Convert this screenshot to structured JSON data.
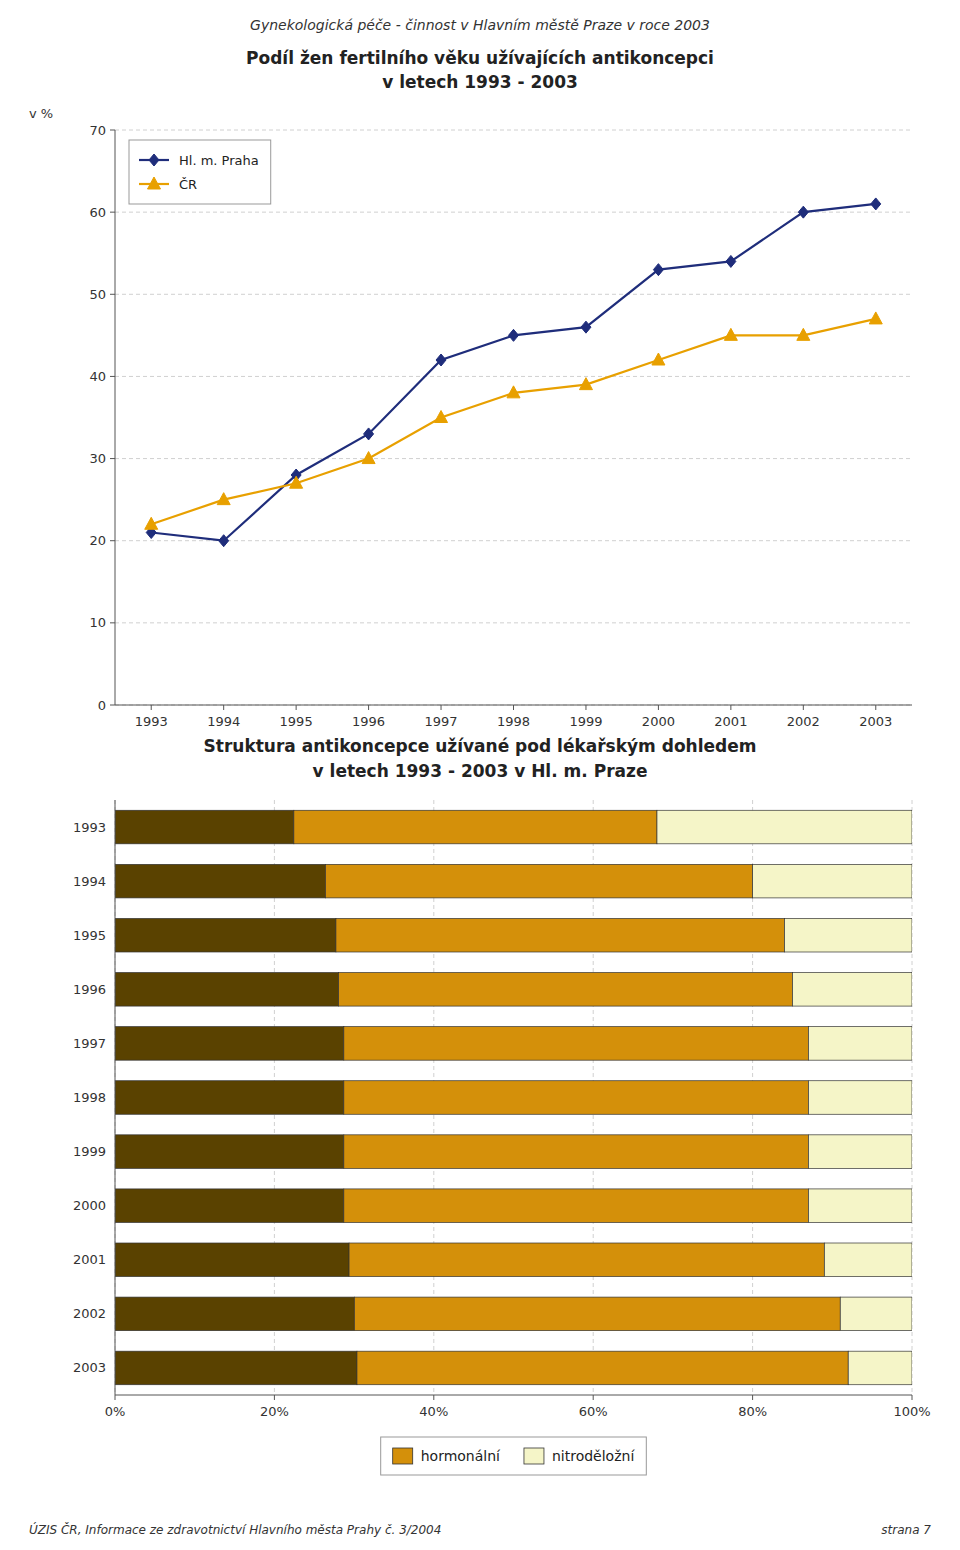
{
  "page_title": "Gynekologická péče - činnost v Hlavním městě Praze v roce 2003",
  "footer_left": "ÚZIS ČR, Informace ze zdravotnictví Hlavního města Prahy č. 3/2004",
  "footer_right": "strana 7",
  "chart_data": [
    {
      "type": "line",
      "title": "Podíl žen fertilního věku užívajících antikoncepci",
      "subtitle": "v letech 1993 - 2003",
      "ylabel": "v %",
      "x": [
        1993,
        1994,
        1995,
        1996,
        1997,
        1998,
        1999,
        2000,
        2001,
        2002,
        2003
      ],
      "series": [
        {
          "name": "Hl. m. Praha",
          "color": "#1f2d7b",
          "marker": "diamond",
          "values": [
            21,
            20,
            28,
            33,
            42,
            45,
            46,
            53,
            54,
            60,
            61
          ]
        },
        {
          "name": "ČR",
          "color": "#e8a000",
          "marker": "triangle",
          "values": [
            22,
            25,
            27,
            30,
            35,
            38,
            39,
            42,
            45,
            45,
            47
          ]
        }
      ],
      "xlim": [
        1992.5,
        2003.5
      ],
      "xticks": [
        1993,
        1994,
        1995,
        1996,
        1997,
        1998,
        1999,
        2000,
        2001,
        2002,
        2003
      ],
      "ylim": [
        0,
        70
      ],
      "yticks": [
        0,
        10,
        20,
        30,
        40,
        50,
        60,
        70
      ],
      "grid": true,
      "legend": "upper left"
    },
    {
      "type": "bar",
      "orientation": "horizontal",
      "stacked": true,
      "title": "Struktura antikoncepce užívané pod lékařským dohledem",
      "subtitle": "v letech 1993 - 2003 v Hl. m. Praze",
      "categories": [
        "2003",
        "2002",
        "2001",
        "2000",
        "1999",
        "1998",
        "1997",
        "1996",
        "1995",
        "1994",
        "1993"
      ],
      "series": [
        {
          "color": "#5a4200",
          "values": [
            30.36,
            30.03,
            29.37,
            28.71,
            28.71,
            28.71,
            28.71,
            28.05,
            27.72,
            26.4,
            22.44
          ]
        },
        {
          "name": "hormonální",
          "color": "#d4900a",
          "values": [
            61.64,
            60.97,
            59.63,
            58.29,
            58.29,
            58.29,
            58.29,
            56.95,
            56.28,
            53.6,
            45.56
          ]
        },
        {
          "name": "nitroděložní",
          "color": "#f5f5c8",
          "values": [
            8,
            9,
            11,
            13,
            13,
            13,
            13,
            15,
            16,
            20,
            32
          ]
        }
      ],
      "xlim": [
        0,
        100
      ],
      "xticks": [
        {
          "value": 0,
          "label": "0%"
        },
        {
          "value": 20,
          "label": "20%"
        },
        {
          "value": 40,
          "label": "40%"
        },
        {
          "value": 60,
          "label": "60%"
        },
        {
          "value": 80,
          "label": "80%"
        },
        {
          "value": 100,
          "label": "100%"
        }
      ],
      "grid": true,
      "legend": "bottom"
    }
  ]
}
